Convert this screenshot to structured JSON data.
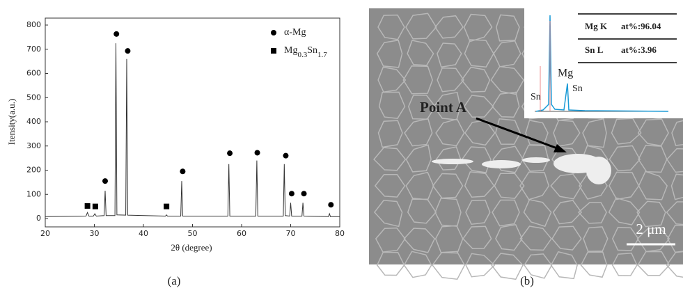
{
  "chart_data": {
    "type": "scatter",
    "x_label": "2θ (degree)",
    "y_label": "Itensity(a.u.)",
    "xlim": [
      20,
      80
    ],
    "xticks": [
      20,
      30,
      40,
      50,
      60,
      70,
      80
    ],
    "ylim": [
      0,
      800
    ],
    "yticks": [
      0,
      100,
      200,
      300,
      400,
      500,
      600,
      700,
      800
    ],
    "line": {
      "color": "#333333",
      "x": [
        20,
        28.3,
        28.6,
        28.9,
        29.8,
        30.1,
        30.4,
        32.0,
        32.2,
        32.4,
        34.2,
        34.4,
        34.6,
        36.4,
        36.6,
        36.8,
        44.5,
        44.7,
        44.9,
        47.6,
        47.8,
        48.0,
        57.2,
        57.4,
        57.6,
        62.9,
        63.1,
        63.3,
        68.5,
        68.7,
        68.9,
        69.8,
        70.0,
        70.2,
        72.3,
        72.5,
        72.7,
        77.7,
        77.9,
        78.1,
        80
      ],
      "values": [
        8,
        10,
        25,
        10,
        10,
        20,
        10,
        12,
        115,
        12,
        12,
        725,
        15,
        14,
        660,
        14,
        10,
        15,
        10,
        10,
        155,
        10,
        10,
        225,
        10,
        10,
        240,
        10,
        10,
        225,
        12,
        10,
        65,
        10,
        10,
        65,
        10,
        8,
        20,
        8,
        8
      ]
    },
    "series": [
      {
        "name": "α-Mg",
        "marker": "circle",
        "color": "#000000",
        "x": [
          32.2,
          34.5,
          36.8,
          48.0,
          57.6,
          63.2,
          69.0,
          70.2,
          72.7,
          78.2
        ],
        "values": [
          155,
          763,
          693,
          195,
          270,
          272,
          260,
          103,
          103,
          57
        ]
      },
      {
        "name": "Mg0.3Sn1.7",
        "marker": "square",
        "color": "#000000",
        "x": [
          28.6,
          30.2,
          44.7
        ],
        "values": [
          52,
          50,
          50
        ]
      }
    ]
  },
  "figure_b": {
    "inset_table": [
      [
        "Mg K",
        "at%:96.04"
      ],
      [
        "Sn L",
        "at%:3.96"
      ]
    ],
    "spectrum_labels": [
      "Sn",
      "Mg",
      "Sn"
    ],
    "point_label": "Point A",
    "scale_bar": "2 μm"
  },
  "captions": [
    "(a)",
    "(b)"
  ]
}
